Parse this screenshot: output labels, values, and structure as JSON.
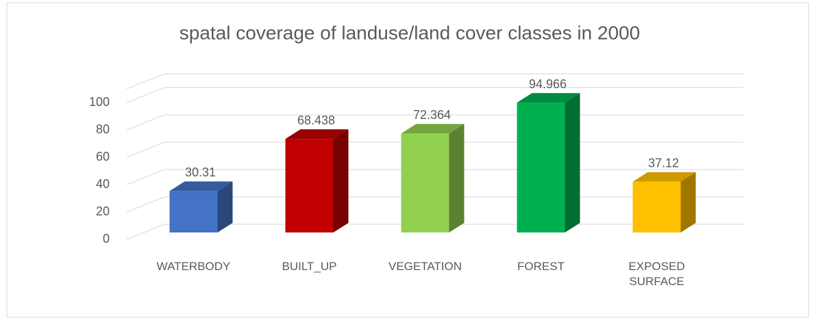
{
  "chart_data": {
    "type": "bar3d",
    "title": "spatal coverage of landuse/land cover classes in 2000",
    "categories": [
      "WATERBODY",
      "BUILT_UP",
      "VEGETATION",
      "FOREST",
      "EXPOSED SURFACE"
    ],
    "values": [
      30.31,
      68.438,
      72.364,
      94.966,
      37.12
    ],
    "colors": [
      "#4472c4",
      "#c00000",
      "#92d050",
      "#00b050",
      "#ffc000"
    ],
    "ylim": [
      0,
      100
    ],
    "yticks": [
      0,
      20,
      40,
      60,
      80,
      100
    ],
    "grid": true
  }
}
